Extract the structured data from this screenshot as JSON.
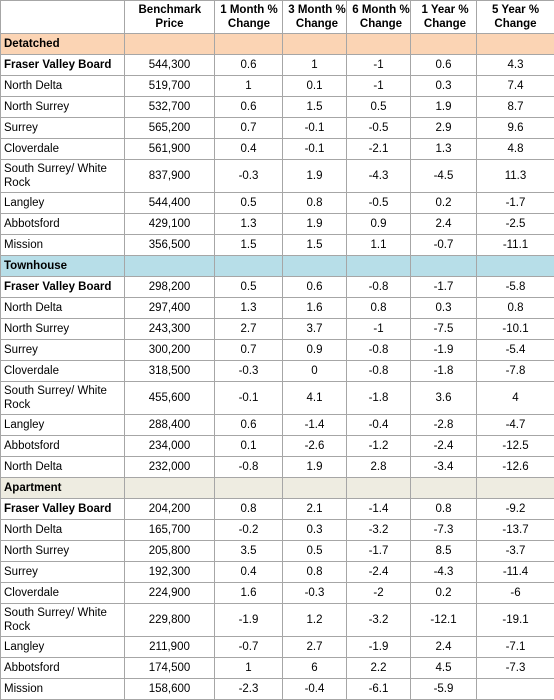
{
  "table": {
    "header": [
      "",
      "Benchmark Price",
      "1 Month % Change",
      "3 Month % Change",
      "6 Month % Change",
      "1 Year % Change",
      "5 Year % Change"
    ],
    "sections": [
      {
        "title": "Detatched",
        "rows": [
          [
            "Fraser Valley Board",
            "544,300",
            "0.6",
            "1",
            "-1",
            "0.6",
            "4.3"
          ],
          [
            "North Delta",
            "519,700",
            "1",
            "0.1",
            "-1",
            "0.3",
            "7.4"
          ],
          [
            "North Surrey",
            "532,700",
            "0.6",
            "1.5",
            "0.5",
            "1.9",
            "8.7"
          ],
          [
            "Surrey",
            "565,200",
            "0.7",
            "-0.1",
            "-0.5",
            "2.9",
            "9.6"
          ],
          [
            "Cloverdale",
            "561,900",
            "0.4",
            "-0.1",
            "-2.1",
            "1.3",
            "4.8"
          ],
          [
            "South Surrey/ White Rock",
            "837,900",
            "-0.3",
            "1.9",
            "-4.3",
            "-4.5",
            "11.3"
          ],
          [
            "Langley",
            "544,400",
            "0.5",
            "0.8",
            "-0.5",
            "0.2",
            "-1.7"
          ],
          [
            "Abbotsford",
            "429,100",
            "1.3",
            "1.9",
            "0.9",
            "2.4",
            "-2.5"
          ],
          [
            "Mission",
            "356,500",
            "1.5",
            "1.5",
            "1.1",
            "-0.7",
            "-11.1"
          ]
        ]
      },
      {
        "title": "Townhouse",
        "rows": [
          [
            "Fraser Valley Board",
            "298,200",
            "0.5",
            "0.6",
            "-0.8",
            "-1.7",
            "-5.8"
          ],
          [
            "North Delta",
            "297,400",
            "1.3",
            "1.6",
            "0.8",
            "0.3",
            "0.8"
          ],
          [
            "North Surrey",
            "243,300",
            "2.7",
            "3.7",
            "-1",
            "-7.5",
            "-10.1"
          ],
          [
            "Surrey",
            "300,200",
            "0.7",
            "0.9",
            "-0.8",
            "-1.9",
            "-5.4"
          ],
          [
            "Cloverdale",
            "318,500",
            "-0.3",
            "0",
            "-0.8",
            "-1.8",
            "-7.8"
          ],
          [
            "South Surrey/ White Rock",
            "455,600",
            "-0.1",
            "4.1",
            "-1.8",
            "3.6",
            "4"
          ],
          [
            "Langley",
            "288,400",
            "0.6",
            "-1.4",
            "-0.4",
            "-2.8",
            "-4.7"
          ],
          [
            "Abbotsford",
            "234,000",
            "0.1",
            "-2.6",
            "-1.2",
            "-2.4",
            "-12.5"
          ],
          [
            "North Delta",
            "232,000",
            "-0.8",
            "1.9",
            "2.8",
            "-3.4",
            "-12.6"
          ]
        ]
      },
      {
        "title": "Apartment",
        "rows": [
          [
            "Fraser Valley Board",
            "204,200",
            "0.8",
            "2.1",
            "-1.4",
            "0.8",
            "-9.2"
          ],
          [
            "North Delta",
            "165,700",
            "-0.2",
            "0.3",
            "-3.2",
            "-7.3",
            "-13.7"
          ],
          [
            "North Surrey",
            "205,800",
            "3.5",
            "0.5",
            "-1.7",
            "8.5",
            "-3.7"
          ],
          [
            "Surrey",
            "192,300",
            "0.4",
            "0.8",
            "-2.4",
            "-4.3",
            "-11.4"
          ],
          [
            "Cloverdale",
            "224,900",
            "1.6",
            "-0.3",
            "-2",
            "0.2",
            "-6"
          ],
          [
            "South Surrey/ White Rock",
            "229,800",
            "-1.9",
            "1.2",
            "-3.2",
            "-12.1",
            "-19.1"
          ],
          [
            "Langley",
            "211,900",
            "-0.7",
            "2.7",
            "-1.9",
            "2.4",
            "-7.1"
          ],
          [
            "Abbotsford",
            "174,500",
            "1",
            "6",
            "2.2",
            "4.5",
            "-7.3"
          ],
          [
            "Mission",
            "158,600",
            "-2.3",
            "-0.4",
            "-6.1",
            "-5.9",
            null
          ]
        ]
      }
    ]
  }
}
